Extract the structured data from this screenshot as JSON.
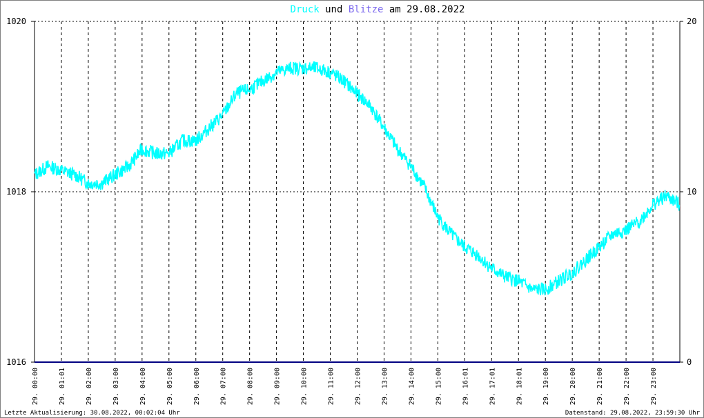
{
  "footer": {
    "left": "Letzte Aktualisierung: 30.08.2022, 00:02:04 Uhr",
    "right": "Datenstand: 29.08.2022, 23:59:30 Uhr"
  },
  "colors": {
    "druck": "#00ffff",
    "blitze": "#000080",
    "title_blitze": "#7b68ee",
    "grid": "#000000",
    "frame": "#808080"
  },
  "chart_data": {
    "type": "line",
    "title_parts": [
      {
        "text": "Druck",
        "role": "series-druck"
      },
      {
        "text": " und ",
        "role": "plain"
      },
      {
        "text": "Blitze",
        "role": "series-blitze"
      },
      {
        "text": " am 29.08.2022",
        "role": "plain"
      }
    ],
    "left_axis": {
      "ylim": [
        1016,
        1020
      ],
      "ticks": [
        "1016",
        "1018",
        "1020"
      ]
    },
    "right_axis": {
      "ylim": [
        0,
        20
      ],
      "ticks": [
        "0",
        "10",
        "20"
      ]
    },
    "x_tick_labels": [
      "29. 00:00",
      "29. 01:01",
      "29. 02:00",
      "29. 03:00",
      "29. 04:00",
      "29. 05:00",
      "29. 06:00",
      "29. 07:00",
      "29. 08:00",
      "29. 09:00",
      "29. 10:00",
      "29. 11:00",
      "29. 12:00",
      "29. 13:00",
      "29. 14:00",
      "29. 15:00",
      "29. 16:01",
      "29. 17:01",
      "29. 18:01",
      "29. 19:00",
      "29. 20:00",
      "29. 21:00",
      "29. 22:00",
      "29. 23:00"
    ],
    "grid": true,
    "series": [
      {
        "name": "Druck",
        "axis": "left",
        "x_hours": [
          0,
          0.5,
          1,
          1.5,
          2,
          2.5,
          3,
          3.5,
          4,
          4.5,
          5,
          5.5,
          6,
          6.5,
          7,
          7.5,
          8,
          8.5,
          9,
          9.5,
          10,
          10.5,
          11,
          11.5,
          12,
          12.5,
          13,
          13.5,
          14,
          14.5,
          15,
          15.5,
          16,
          16.5,
          17,
          17.5,
          18,
          18.5,
          19,
          19.5,
          20,
          20.5,
          21,
          21.5,
          22,
          22.5,
          23,
          23.5,
          24
        ],
        "values": [
          1018.2,
          1018.3,
          1018.25,
          1018.2,
          1018.1,
          1018.1,
          1018.2,
          1018.3,
          1018.5,
          1018.45,
          1018.45,
          1018.6,
          1018.6,
          1018.75,
          1018.9,
          1019.15,
          1019.2,
          1019.3,
          1019.4,
          1019.45,
          1019.45,
          1019.45,
          1019.4,
          1019.3,
          1019.15,
          1019.0,
          1018.75,
          1018.5,
          1018.3,
          1018.05,
          1017.7,
          1017.5,
          1017.35,
          1017.25,
          1017.1,
          1017.0,
          1016.95,
          1016.85,
          1016.85,
          1016.95,
          1017.05,
          1017.2,
          1017.35,
          1017.5,
          1017.55,
          1017.65,
          1017.85,
          1017.95,
          1017.85
        ],
        "noise": 0.08
      },
      {
        "name": "Blitze",
        "axis": "right",
        "x_hours": [
          0,
          24
        ],
        "values": [
          0,
          0
        ]
      }
    ]
  }
}
